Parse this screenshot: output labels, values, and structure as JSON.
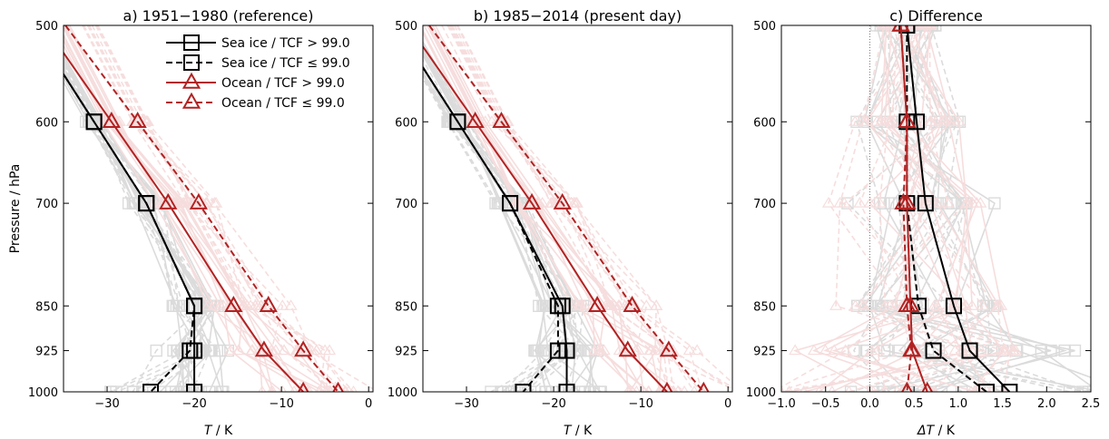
{
  "chart_data": [
    {
      "type": "line",
      "title": "a) 1951−1980 (reference)",
      "xlabel_var": "T",
      "xlabel_unit": " / K",
      "ylabel": "Pressure / hPa",
      "xlim": [
        -35,
        0.5
      ],
      "ylim": [
        500,
        1000
      ],
      "xticks": [
        -30,
        -20,
        -10,
        0
      ],
      "xtick_labels": [
        "−30",
        "−20",
        "−10",
        "0"
      ],
      "yticks": [
        500,
        600,
        700,
        850,
        925,
        1000
      ],
      "ytick_labels": [
        "500",
        "600",
        "700",
        "850",
        "925",
        "1000"
      ],
      "pressure": [
        600,
        700,
        850,
        925,
        1000
      ],
      "series": [
        {
          "name": "Sea ice / TCF > 99.0",
          "values": [
            -31.5,
            -25.5,
            -20.0,
            -20.0,
            -20.0
          ]
        },
        {
          "name": "Sea ice / TCF ≤ 99.0",
          "values": [
            -31.5,
            -25.5,
            -20.0,
            -20.5,
            -25.0
          ]
        },
        {
          "name": "Ocean / TCF > 99.0",
          "values": [
            -29.5,
            -23.0,
            -15.5,
            -12.0,
            -7.5
          ]
        },
        {
          "name": "Ocean / TCF ≤ 99.0",
          "values": [
            -26.5,
            -19.5,
            -11.5,
            -7.5,
            -3.5
          ]
        }
      ]
    },
    {
      "type": "line",
      "title": "b) 1985−2014 (present day)",
      "xlabel_var": "T",
      "xlabel_unit": " / K",
      "xlim": [
        -35,
        0.5
      ],
      "ylim": [
        500,
        1000
      ],
      "xticks": [
        -30,
        -20,
        -10,
        0
      ],
      "xtick_labels": [
        "−30",
        "−20",
        "−10",
        "0"
      ],
      "yticks": [
        500,
        600,
        700,
        850,
        925,
        1000
      ],
      "ytick_labels": [
        "500",
        "600",
        "700",
        "850",
        "925",
        "1000"
      ],
      "pressure": [
        600,
        700,
        850,
        925,
        1000
      ],
      "series": [
        {
          "name": "Sea ice / TCF > 99.0",
          "values": [
            -31.0,
            -25.0,
            -19.0,
            -18.5,
            -18.5
          ]
        },
        {
          "name": "Sea ice / TCF ≤ 99.0",
          "values": [
            -31.0,
            -25.0,
            -19.5,
            -19.5,
            -23.5
          ]
        },
        {
          "name": "Ocean / TCF > 99.0",
          "values": [
            -29.0,
            -22.5,
            -15.0,
            -11.5,
            -7.0
          ]
        },
        {
          "name": "Ocean / TCF ≤ 99.0",
          "values": [
            -26.0,
            -19.0,
            -11.0,
            -6.8,
            -2.8
          ]
        }
      ]
    },
    {
      "type": "line",
      "title": "c) Difference",
      "xlabel_var": "ΔT",
      "xlabel_unit": " / K",
      "xlim": [
        -1.0,
        2.5
      ],
      "ylim": [
        500,
        1000
      ],
      "xticks": [
        -1.0,
        -0.5,
        0.0,
        0.5,
        1.0,
        1.5,
        2.0,
        2.5
      ],
      "xtick_labels": [
        "−1.0",
        "−0.5",
        "0.0",
        "0.5",
        "1.0",
        "1.5",
        "2.0",
        "2.5"
      ],
      "yticks": [
        500,
        600,
        700,
        850,
        925,
        1000
      ],
      "ytick_labels": [
        "500",
        "600",
        "700",
        "850",
        "925",
        "1000"
      ],
      "pressure": [
        500,
        600,
        700,
        850,
        925,
        1000
      ],
      "series": [
        {
          "name": "Sea ice / TCF > 99.0",
          "values": [
            0.42,
            0.53,
            0.63,
            0.95,
            1.13,
            1.58
          ]
        },
        {
          "name": "Sea ice / TCF ≤ 99.0",
          "values": [
            0.42,
            0.42,
            0.42,
            0.55,
            0.72,
            1.32
          ]
        },
        {
          "name": "Ocean / TCF > 99.0",
          "values": [
            0.35,
            0.42,
            0.42,
            0.46,
            0.48,
            0.65
          ]
        },
        {
          "name": "Ocean / TCF ≤ 99.0",
          "values": [
            0.35,
            0.42,
            0.38,
            0.42,
            0.47,
            0.42
          ]
        }
      ]
    }
  ],
  "legend": [
    {
      "label": "Sea ice / TCF > 99.0",
      "color": "#000000",
      "dash": false,
      "marker": "square"
    },
    {
      "label": "Sea ice / TCF ≤ 99.0",
      "color": "#000000",
      "dash": true,
      "marker": "square"
    },
    {
      "label": "Ocean / TCF > 99.0",
      "color": "#b22222",
      "dash": false,
      "marker": "triangle"
    },
    {
      "label": "Ocean / TCF ≤ 99.0",
      "color": "#b22222",
      "dash": true,
      "marker": "triangle"
    }
  ],
  "colors": {
    "sea_ice": "#000000",
    "ocean": "#b22222",
    "ens_gray": "#9a9a9a",
    "ens_red": "#e8a0a0"
  }
}
